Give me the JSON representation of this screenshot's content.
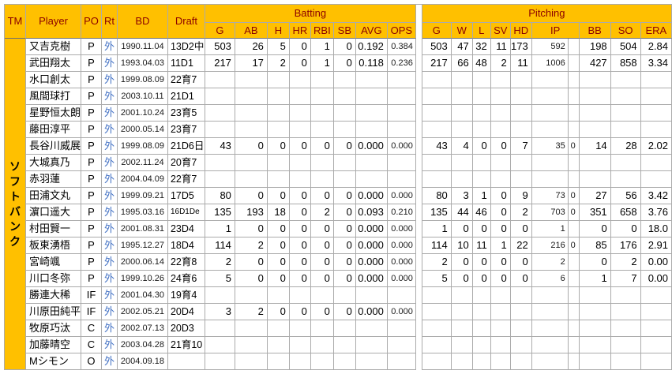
{
  "team_label": "ソフトバンク",
  "header": {
    "columns": {
      "tm": "TM",
      "player": "Player",
      "po": "PO",
      "rt": "Rt",
      "bd": "BD",
      "draft": "Draft"
    },
    "sections": {
      "batting": "Batting",
      "pitching": "Pitching"
    },
    "batting_cols": [
      "G",
      "AB",
      "H",
      "HR",
      "RBI",
      "SB",
      "AVG",
      "OPS"
    ],
    "pitching_cols": [
      "G",
      "W",
      "L",
      "SV",
      "HD",
      "IP",
      "BB",
      "SO",
      "ERA"
    ]
  },
  "colors": {
    "header_bg": "#FFC000",
    "header_text": "#8B0000",
    "rt_text": "#4472C4",
    "grid": "#ABABAB"
  },
  "rows": [
    {
      "player": "又吉克樹",
      "po": "P",
      "rt": "外",
      "bd": "1990.11.04",
      "draft": "13D2中",
      "batting": [
        "503",
        "26",
        "5",
        "0",
        "1",
        "0",
        "0.192",
        "0.384"
      ],
      "pitching": [
        "503",
        "47",
        "32",
        "11",
        "173",
        "592",
        "",
        "198",
        "504",
        "2.84"
      ]
    },
    {
      "player": "武田翔太",
      "po": "P",
      "rt": "外",
      "bd": "1993.04.03",
      "draft": "11D1",
      "batting": [
        "217",
        "17",
        "2",
        "0",
        "1",
        "0",
        "0.118",
        "0.236"
      ],
      "pitching": [
        "217",
        "66",
        "48",
        "2",
        "11",
        "1006",
        "",
        "427",
        "858",
        "3.34"
      ]
    },
    {
      "player": "水口創太",
      "po": "P",
      "rt": "外",
      "bd": "1999.08.09",
      "draft": "22育7",
      "batting": null,
      "pitching": null
    },
    {
      "player": "風間球打",
      "po": "P",
      "rt": "外",
      "bd": "2003.10.11",
      "draft": "21D1",
      "batting": null,
      "pitching": null
    },
    {
      "player": "星野恒太朗",
      "po": "P",
      "rt": "外",
      "bd": "2001.10.24",
      "draft": "23育5",
      "batting": null,
      "pitching": null
    },
    {
      "player": "藤田淳平",
      "po": "P",
      "rt": "外",
      "bd": "2000.05.14",
      "draft": "23育7",
      "batting": null,
      "pitching": null
    },
    {
      "player": "長谷川威展",
      "po": "P",
      "rt": "外",
      "bd": "1999.08.09",
      "draft": "21D6日",
      "batting": [
        "43",
        "0",
        "0",
        "0",
        "0",
        "0",
        "0.000",
        "0.000"
      ],
      "pitching": [
        "43",
        "4",
        "0",
        "0",
        "7",
        "35",
        "0",
        "14",
        "28",
        "2.02"
      ]
    },
    {
      "player": "大城真乃",
      "po": "P",
      "rt": "外",
      "bd": "2002.11.24",
      "draft": "20育7",
      "batting": null,
      "pitching": null
    },
    {
      "player": "赤羽蓮",
      "po": "P",
      "rt": "外",
      "bd": "2004.04.09",
      "draft": "22育7",
      "batting": null,
      "pitching": null
    },
    {
      "player": "田浦文丸",
      "po": "P",
      "rt": "外",
      "bd": "1999.09.21",
      "draft": "17D5",
      "batting": [
        "80",
        "0",
        "0",
        "0",
        "0",
        "0",
        "0.000",
        "0.000"
      ],
      "pitching": [
        "80",
        "3",
        "1",
        "0",
        "9",
        "73",
        "0",
        "27",
        "56",
        "3.42"
      ]
    },
    {
      "player": "濵口遥大",
      "po": "P",
      "rt": "外",
      "bd": "1995.03.16",
      "draft": "16D1De",
      "batting": [
        "135",
        "193",
        "18",
        "0",
        "2",
        "0",
        "0.093",
        "0.210"
      ],
      "pitching": [
        "135",
        "44",
        "46",
        "0",
        "2",
        "703",
        "0",
        "351",
        "658",
        "3.76"
      ]
    },
    {
      "player": "村田賢一",
      "po": "P",
      "rt": "外",
      "bd": "2001.08.31",
      "draft": "23D4",
      "batting": [
        "1",
        "0",
        "0",
        "0",
        "0",
        "0",
        "0.000",
        "0.000"
      ],
      "pitching": [
        "1",
        "0",
        "0",
        "0",
        "0",
        "1",
        "",
        "0",
        "0",
        "18.0"
      ]
    },
    {
      "player": "板東湧梧",
      "po": "P",
      "rt": "外",
      "bd": "1995.12.27",
      "draft": "18D4",
      "batting": [
        "114",
        "2",
        "0",
        "0",
        "0",
        "0",
        "0.000",
        "0.000"
      ],
      "pitching": [
        "114",
        "10",
        "11",
        "1",
        "22",
        "216",
        "0",
        "85",
        "176",
        "2.91"
      ]
    },
    {
      "player": "宮崎颯",
      "po": "P",
      "rt": "外",
      "bd": "2000.06.14",
      "draft": "22育8",
      "batting": [
        "2",
        "0",
        "0",
        "0",
        "0",
        "0",
        "0.000",
        "0.000"
      ],
      "pitching": [
        "2",
        "0",
        "0",
        "0",
        "0",
        "2",
        "",
        "0",
        "2",
        "0.00"
      ]
    },
    {
      "player": "川口冬弥",
      "po": "P",
      "rt": "外",
      "bd": "1999.10.26",
      "draft": "24育6",
      "batting": [
        "5",
        "0",
        "0",
        "0",
        "0",
        "0",
        "0.000",
        "0.000"
      ],
      "pitching": [
        "5",
        "0",
        "0",
        "0",
        "0",
        "6",
        "",
        "1",
        "7",
        "0.00"
      ]
    },
    {
      "player": "勝連大稀",
      "po": "IF",
      "rt": "外",
      "bd": "2001.04.30",
      "draft": "19育4",
      "batting": null,
      "pitching": null
    },
    {
      "player": "川原田純平",
      "po": "IF",
      "rt": "外",
      "bd": "2002.05.21",
      "draft": "20D4",
      "batting": [
        "3",
        "2",
        "0",
        "0",
        "0",
        "0",
        "0.000",
        "0.000"
      ],
      "pitching": null
    },
    {
      "player": "牧原巧汰",
      "po": "C",
      "rt": "外",
      "bd": "2002.07.13",
      "draft": "20D3",
      "batting": null,
      "pitching": null
    },
    {
      "player": "加藤晴空",
      "po": "C",
      "rt": "外",
      "bd": "2003.04.28",
      "draft": "21育10",
      "batting": null,
      "pitching": null
    },
    {
      "player": "Mシモン",
      "po": "O",
      "rt": "外",
      "bd": "2004.09.18",
      "draft": "",
      "batting": null,
      "pitching": null
    }
  ]
}
